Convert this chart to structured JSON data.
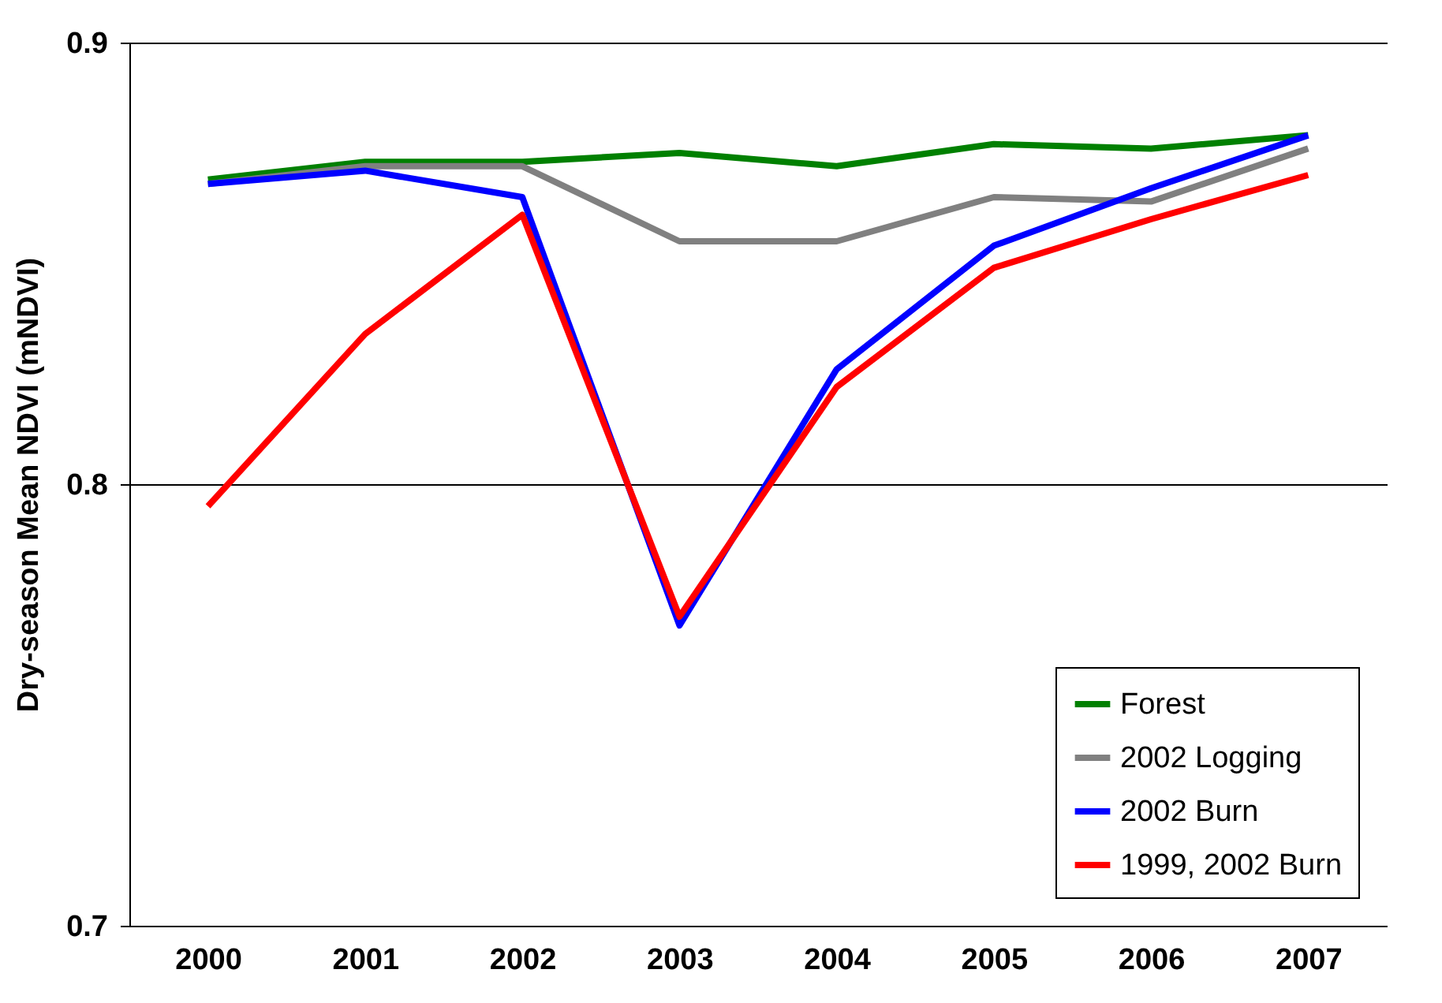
{
  "chart_data": {
    "type": "line",
    "ylabel": "Dry-season Mean NDVI (mNDVI)",
    "categories": [
      "2000",
      "2001",
      "2002",
      "2003",
      "2004",
      "2005",
      "2006",
      "2007"
    ],
    "series": [
      {
        "name": "Forest",
        "color": "#008000",
        "values": [
          0.869,
          0.873,
          0.873,
          0.875,
          0.872,
          0.877,
          0.876,
          0.879
        ]
      },
      {
        "name": "2002 Logging",
        "color": "#808080",
        "values": [
          0.868,
          0.872,
          0.872,
          0.855,
          0.855,
          0.865,
          0.864,
          0.876
        ]
      },
      {
        "name": "2002 Burn",
        "color": "#0000ff",
        "values": [
          0.868,
          0.871,
          0.865,
          0.768,
          0.826,
          0.854,
          0.867,
          0.879
        ]
      },
      {
        "name": "1999, 2002 Burn",
        "color": "#ff0000",
        "values": [
          0.795,
          0.834,
          0.861,
          0.77,
          0.822,
          0.849,
          0.86,
          0.87
        ]
      }
    ],
    "ylim": [
      0.7,
      0.9
    ],
    "yticks": [
      0.7,
      0.8,
      0.9
    ],
    "grid": "y",
    "legend": "bottom right",
    "marker": "none",
    "line_style": "solid"
  }
}
